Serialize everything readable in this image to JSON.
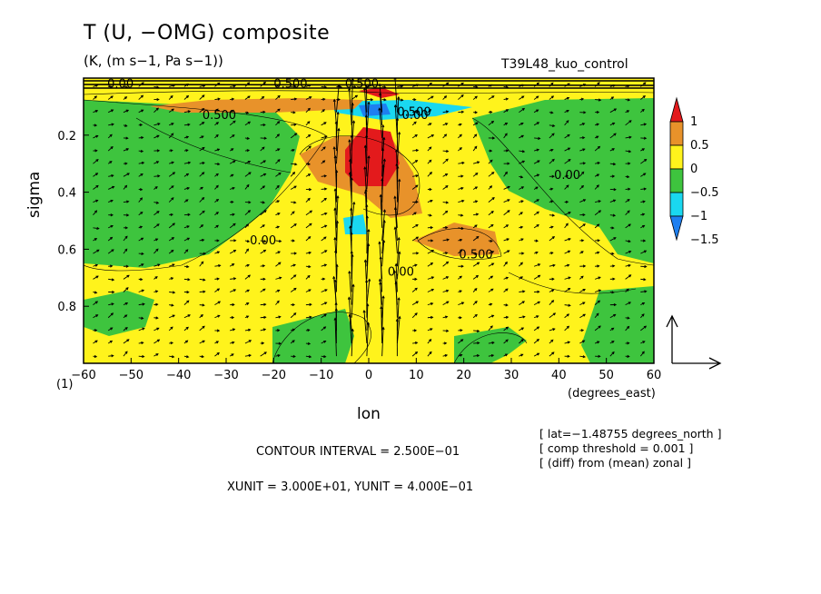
{
  "header": {
    "title": "T (U, −OMG) composite",
    "units": "(K, (m s−1, Pa s−1))",
    "run": "T39L48_kuo_control"
  },
  "footer": {
    "contour_interval": "CONTOUR INTERVAL = 2.500E−01",
    "xy_unit": "XUNIT = 3.000E+01, YUNIT = 4.000E−01",
    "meta": [
      "[ lat=−1.48755 degrees_north ]",
      "[ comp threshold = 0.001 ]",
      "[ (diff) from (mean) zonal ]"
    ]
  },
  "chart_data": {
    "type": "heatmap",
    "title": "T (U, −OMG) composite",
    "xlabel": "lon",
    "xunit_label": "(degrees_east)",
    "ylabel": "sigma",
    "y_extra_tick": "(1)",
    "xlim": [
      -60,
      60
    ],
    "ylim": [
      1.0,
      0.0
    ],
    "xticks": [
      "−60",
      "−50",
      "−40",
      "−30",
      "−20",
      "−10",
      "0",
      "10",
      "20",
      "30",
      "40",
      "50",
      "60"
    ],
    "yticks": [
      "0.2",
      "0.4",
      "0.6",
      "0.8"
    ],
    "colorbar": {
      "labels": [
        "1",
        "0.5",
        "0",
        "−0.5",
        "−1",
        "−1.5"
      ],
      "colors": [
        "#e31a1c",
        "#e8922a",
        "#fff31c",
        "#3ec43e",
        "#1ad8f0",
        "#1e7ff0"
      ]
    },
    "contour_labels": [
      "0.00",
      "0.500",
      "0.500",
      "0.500",
      "0.00",
      "0.500",
      "0.00",
      "0.00",
      "0.500",
      "0.00"
    ]
  }
}
